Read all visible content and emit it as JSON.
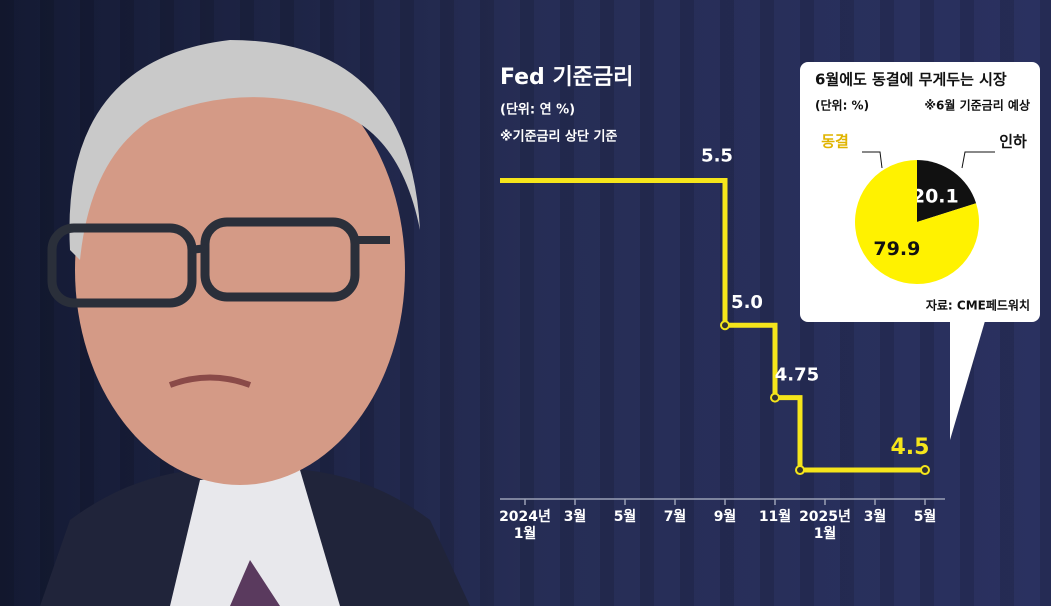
{
  "chart_data": [
    {
      "type": "step",
      "title": "Fed 기준금리",
      "subtitle": "(단위: 연 %)",
      "note": "※기준금리 상단 기준",
      "x": [
        "2023-12",
        "2024-09",
        "2024-11",
        "2024-12",
        "2025-05"
      ],
      "values": [
        5.5,
        5.0,
        4.75,
        4.5,
        4.5
      ],
      "value_labels": [
        "5.5",
        "5.0",
        "4.75",
        null,
        "4.5"
      ],
      "color": "#f5e51b",
      "xlim": [
        "2023-12",
        "2025-06"
      ],
      "xticks": [
        {
          "value": "2024-01",
          "label": "2024년\n1월"
        },
        {
          "value": "2024-03",
          "label": "3월"
        },
        {
          "value": "2024-05",
          "label": "5월"
        },
        {
          "value": "2024-07",
          "label": "7월"
        },
        {
          "value": "2024-09",
          "label": "9월"
        },
        {
          "value": "2024-11",
          "label": "11월"
        },
        {
          "value": "2025-01",
          "label": "2025년\n1월"
        },
        {
          "value": "2025-03",
          "label": "3월"
        },
        {
          "value": "2025-05",
          "label": "5월"
        }
      ],
      "ylim": [
        4.4,
        5.65
      ]
    },
    {
      "type": "pie",
      "title": "6월에도 동결에 무게두는 시장",
      "subtitle": "(단위: %)",
      "note": "※6월 기준금리 예상",
      "source": "자료: CME페드워치",
      "categories": [
        "동결",
        "인하"
      ],
      "values": [
        79.9,
        20.1
      ],
      "colors": [
        "#fff200",
        "#111111"
      ]
    }
  ]
}
